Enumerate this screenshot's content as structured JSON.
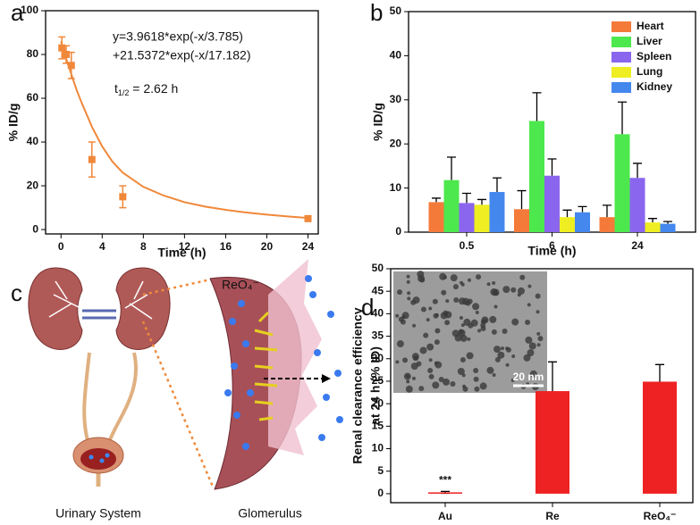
{
  "chart_data": [
    {
      "type": "scatter",
      "label": "a",
      "xlabel": "Time (h)",
      "ylabel": "% ID/g",
      "color": "#f0883a",
      "x": [
        0.083,
        0.5,
        1,
        3,
        6,
        24
      ],
      "values": [
        83,
        80,
        75,
        32,
        15,
        5
      ],
      "errors": [
        5,
        4,
        6,
        8,
        5,
        1
      ],
      "fit": {
        "x": [
          0,
          0.5,
          1,
          1.5,
          2,
          3,
          4,
          5,
          6,
          8,
          10,
          12,
          14,
          16,
          18,
          20,
          22,
          24
        ],
        "values": [
          86,
          78,
          71,
          64,
          58,
          47,
          38,
          31,
          26,
          19.5,
          15.5,
          12.5,
          10.5,
          9,
          7.8,
          6.8,
          6,
          5.3
        ]
      },
      "annotations": [
        "y=3.9618*exp(-x/3.785)",
        "+21.5372*exp(-x/17.182)"
      ],
      "half_life": {
        "symbol": "t",
        "subscript": "1/2",
        "text": " = 2.62 h"
      },
      "xlim": [
        -1.5,
        25
      ],
      "xticks": [
        0,
        4,
        8,
        12,
        16,
        20,
        24
      ],
      "ylim": [
        -2,
        100
      ],
      "yticks": [
        0,
        20,
        40,
        60,
        80,
        100
      ]
    },
    {
      "type": "bar",
      "label": "b",
      "xlabel": "Time (h)",
      "ylabel": "% ID/g",
      "error_bars": "upper",
      "legend": "top-right",
      "categories": [
        "0.5",
        "6",
        "24"
      ],
      "series": [
        {
          "name": "Heart",
          "color": "#f47a3a",
          "values": [
            6.8,
            5.2,
            3.4
          ],
          "errors": [
            0.9,
            4.2,
            2.7
          ]
        },
        {
          "name": "Liver",
          "color": "#4de84d",
          "values": [
            11.8,
            25.2,
            22.2
          ],
          "errors": [
            5.2,
            6.4,
            7.3
          ]
        },
        {
          "name": "Spleen",
          "color": "#8a66ee",
          "values": [
            6.6,
            12.8,
            12.3
          ],
          "errors": [
            2.2,
            3.8,
            3.3
          ]
        },
        {
          "name": "Lung",
          "color": "#eeee22",
          "values": [
            6.2,
            3.4,
            2.2
          ],
          "errors": [
            1.2,
            1.6,
            0.9
          ]
        },
        {
          "name": "Kidney",
          "color": "#4488ee",
          "values": [
            9.1,
            4.5,
            1.9
          ],
          "errors": [
            3.2,
            1.3,
            0.5
          ]
        }
      ],
      "ylim": [
        0,
        50
      ],
      "yticks": [
        0,
        10,
        20,
        30,
        40,
        50
      ]
    },
    {
      "type": "bar",
      "label": "d",
      "ylabel": [
        "Renal clearance efficiency",
        "at 24 h (% ID)"
      ],
      "error_bars": "both",
      "categories": [
        "Au",
        "Re",
        "ReO₄⁻"
      ],
      "series": [
        {
          "color": "#ee2222",
          "values": [
            0.3,
            22.8,
            24.9
          ],
          "errors": [
            0.2,
            6.5,
            3.8
          ]
        }
      ],
      "annotation": "***",
      "inset_scale_label": "20 nm",
      "ylim": [
        -2,
        50
      ],
      "yticks": [
        0,
        5,
        10,
        15,
        20,
        25,
        30,
        35,
        40,
        45,
        50
      ]
    }
  ],
  "illustration": {
    "label": "c",
    "ion": "ReO₄⁻",
    "captions": [
      "Urinary System",
      "Glomerulus"
    ]
  }
}
